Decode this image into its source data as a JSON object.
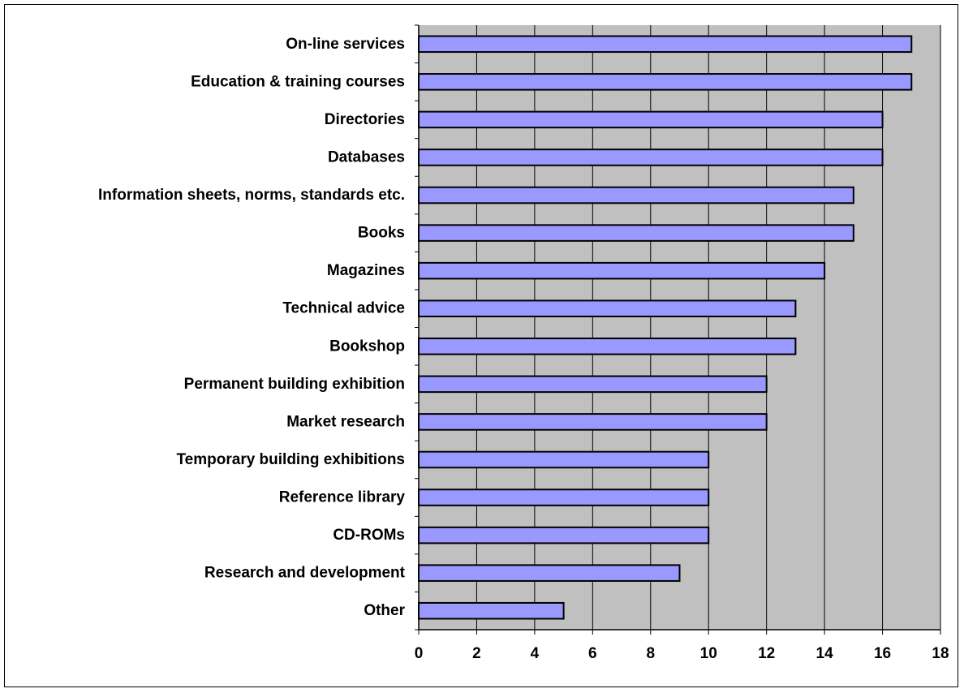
{
  "chart_data": {
    "type": "bar",
    "orientation": "horizontal",
    "categories": [
      "On-line services",
      "Education & training courses",
      "Directories",
      "Databases",
      "Information sheets, norms, standards etc.",
      "Books",
      "Magazines",
      "Technical advice",
      "Bookshop",
      "Permanent building exhibition",
      "Market research",
      "Temporary building exhibitions",
      "Reference library",
      "CD-ROMs",
      "Research and development",
      "Other"
    ],
    "values": [
      17,
      17,
      16,
      16,
      15,
      15,
      14,
      13,
      13,
      12,
      12,
      10,
      10,
      10,
      9,
      5
    ],
    "xlim": [
      0,
      18
    ],
    "x_ticks": [
      0,
      2,
      4,
      6,
      8,
      10,
      12,
      14,
      16,
      18
    ],
    "grid": "vertical",
    "legend": "none",
    "colors": {
      "bar_fill": "#9999ff",
      "bar_stroke": "#000000",
      "plot_background": "#c0c0c0",
      "gridline": "#000000"
    }
  }
}
